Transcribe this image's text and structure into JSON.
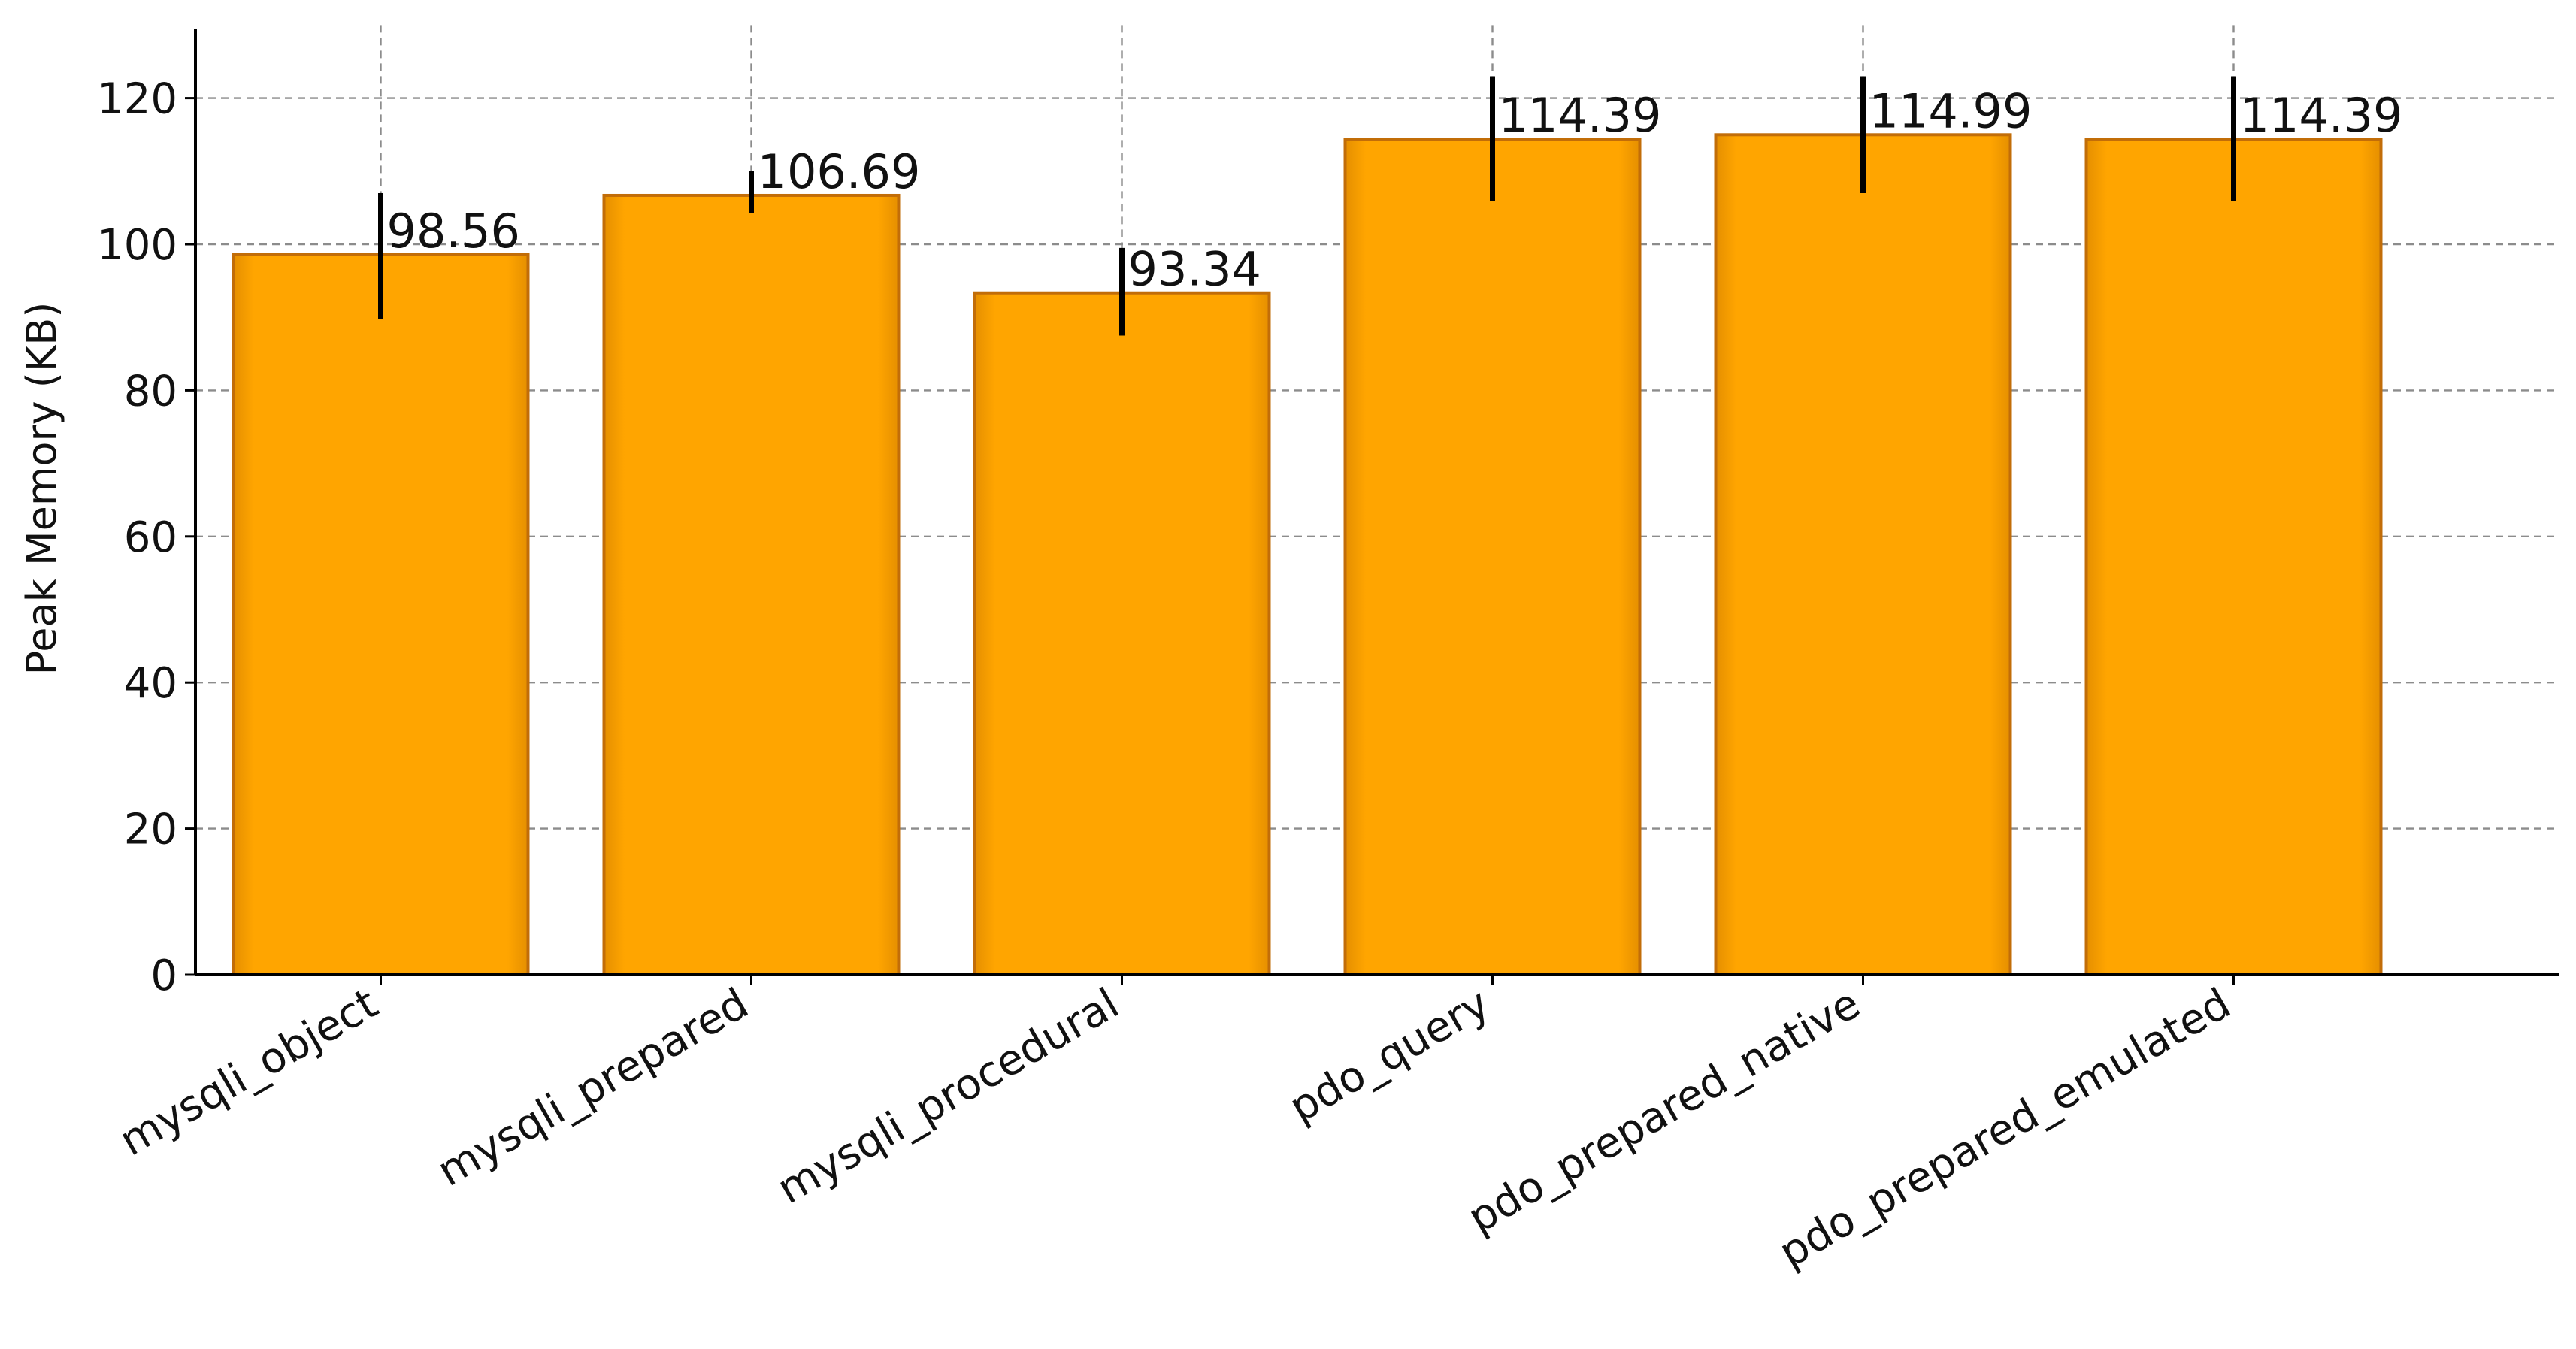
{
  "chart_data": {
    "type": "bar",
    "title": "",
    "xlabel": "",
    "ylabel": "Peak Memory (KB)",
    "categories": [
      "mysqli_object",
      "mysqli_prepared",
      "mysqli_procedural",
      "pdo_query",
      "pdo_prepared_native",
      "pdo_prepared_emulated"
    ],
    "values": [
      98.56,
      106.69,
      93.34,
      114.39,
      114.99,
      114.39
    ],
    "value_labels": [
      "98.56",
      "106.69",
      "93.34",
      "114.39",
      "114.99",
      "114.39"
    ],
    "error_low": [
      89.8,
      104.3,
      87.5,
      105.9,
      107.0,
      105.9
    ],
    "error_high": [
      107.0,
      110.0,
      99.5,
      123.0,
      123.0,
      123.0
    ],
    "ylim": [
      0,
      130
    ],
    "yticks": [
      0,
      20,
      40,
      60,
      80,
      100,
      120
    ],
    "grid": true,
    "legend": "none",
    "bar_color": "#ffa500",
    "bar_edge_color": "#c26d08",
    "error_bar_color": "#000000"
  }
}
